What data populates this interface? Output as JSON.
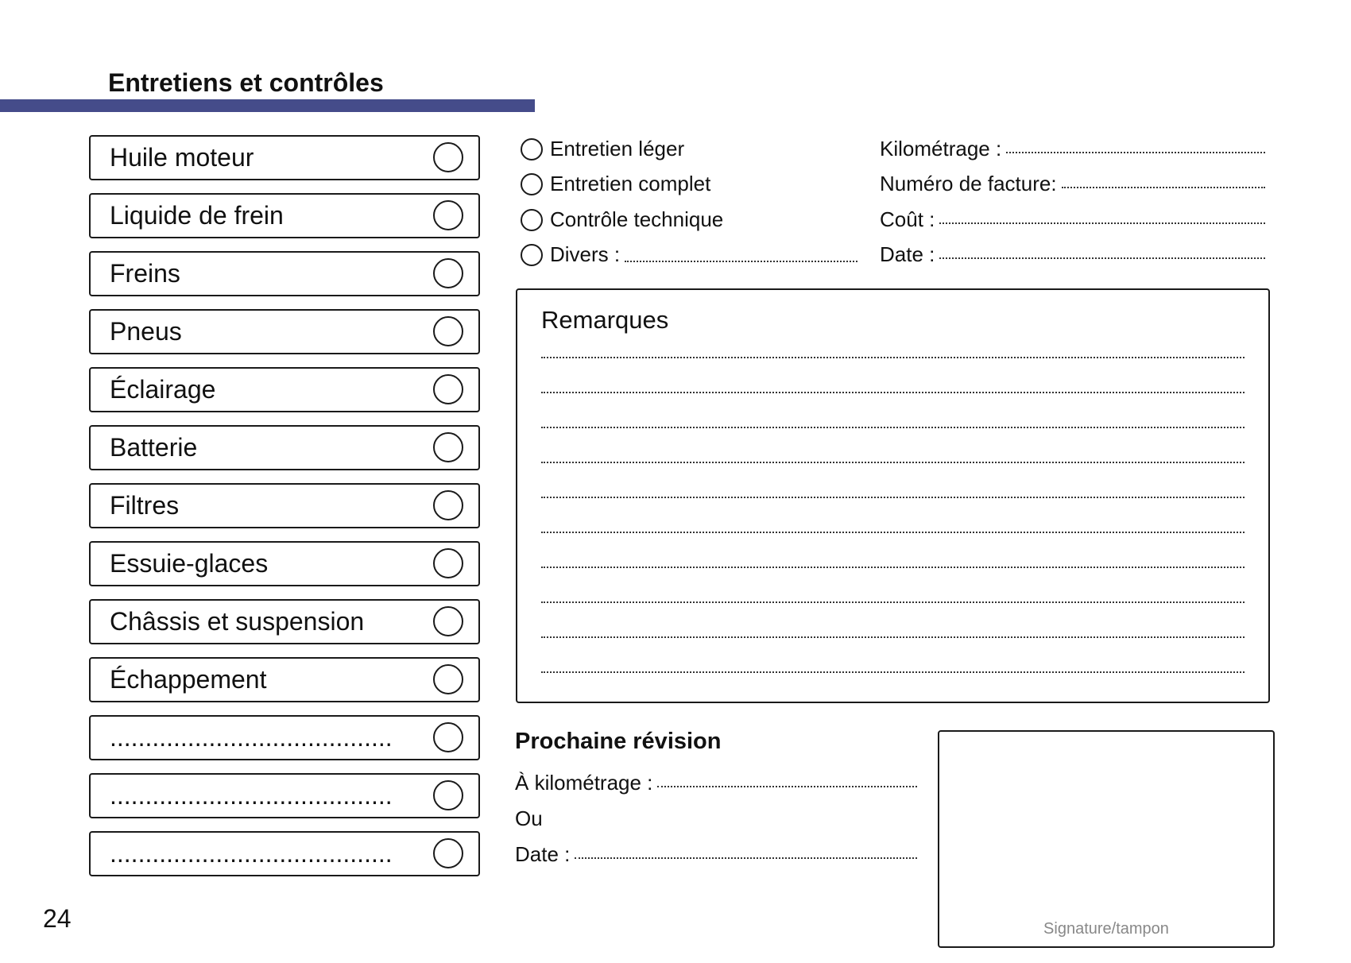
{
  "header": {
    "title": "Entretiens et contrôles",
    "accent_color": "#454c8a"
  },
  "checklist": [
    {
      "label": "Huile moteur"
    },
    {
      "label": "Liquide de frein"
    },
    {
      "label": "Freins"
    },
    {
      "label": "Pneus"
    },
    {
      "label": "Éclairage"
    },
    {
      "label": "Batterie"
    },
    {
      "label": "Filtres"
    },
    {
      "label": "Essuie-glaces"
    },
    {
      "label": "Châssis et suspension"
    },
    {
      "label": "Échappement"
    },
    {
      "label": "........................................"
    },
    {
      "label": "........................................"
    },
    {
      "label": "........................................"
    }
  ],
  "service_types": [
    {
      "label": "Entretien léger"
    },
    {
      "label": "Entretien complet"
    },
    {
      "label": "Contrôle technique"
    },
    {
      "label": "Divers :"
    }
  ],
  "fields": [
    {
      "label": "Kilométrage :"
    },
    {
      "label": "Numéro de facture:"
    },
    {
      "label": "Coût :"
    },
    {
      "label": "Date :"
    }
  ],
  "remarks": {
    "title": "Remarques"
  },
  "next_service": {
    "title": "Prochaine révision",
    "mileage_label": "À kilométrage :",
    "or_label": "Ou",
    "date_label": "Date :"
  },
  "signature": {
    "label": "Signature/tampon"
  },
  "page_number": "24"
}
